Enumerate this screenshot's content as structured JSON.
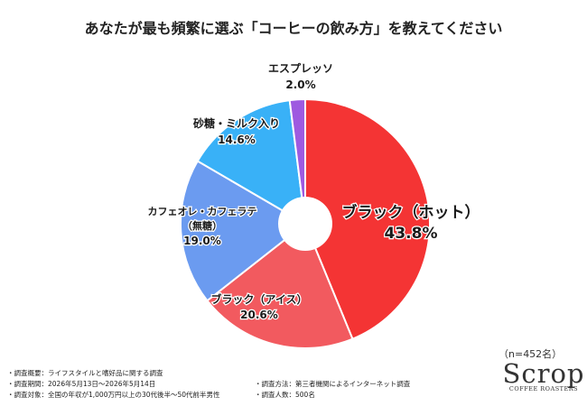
{
  "chart_data": {
    "type": "pie",
    "title": "あなたが最も頻繁に選ぶ「コーヒーの飲み方」を教えてください",
    "slices": [
      {
        "label": "ブラック（ホット）",
        "value": 43.8,
        "value_label": "43.8%",
        "color": "#f43434"
      },
      {
        "label": "ブラック（アイス）",
        "value": 20.6,
        "value_label": "20.6%",
        "color": "#f25a5f"
      },
      {
        "label": "カフェオレ・カフェラテ\n（無糖）",
        "value": 19.0,
        "value_label": "19.0%",
        "color": "#6b9bf0"
      },
      {
        "label": "砂糖・ミルク入り",
        "value": 14.6,
        "value_label": "14.6%",
        "color": "#39b1f7"
      },
      {
        "label": "エスプレッソ",
        "value": 2.0,
        "value_label": "2.0%",
        "color": "#9e5ae0"
      }
    ],
    "start": "12 o'clock",
    "direction": "clockwise",
    "donut_hole": true
  },
  "sample_size": "（n=452名）",
  "notes_left": [
    "・調査概要：ライフスタイルと嗜好品に関する調査",
    "・調査期間：2026年5月13日～2026年5月14日",
    "・調査対象：全国の年収が1,000万円以上の30代後半～50代前半男性"
  ],
  "notes_right": [
    "・調査方法：第三者機関によるインターネット調査",
    "・調査人数：500名"
  ],
  "brand": {
    "name": "Scrop",
    "sub": "COFFEE ROASTERS"
  }
}
